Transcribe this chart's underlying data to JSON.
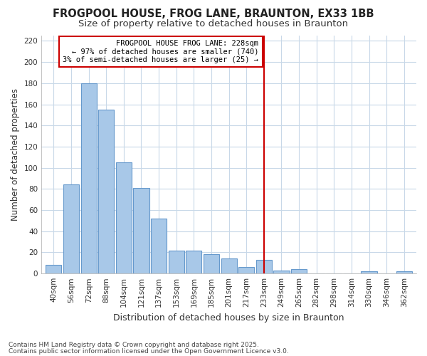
{
  "title": "FROGPOOL HOUSE, FROG LANE, BRAUNTON, EX33 1BB",
  "subtitle": "Size of property relative to detached houses in Braunton",
  "xlabel": "Distribution of detached houses by size in Braunton",
  "ylabel": "Number of detached properties",
  "categories": [
    "40sqm",
    "56sqm",
    "72sqm",
    "88sqm",
    "104sqm",
    "121sqm",
    "137sqm",
    "153sqm",
    "169sqm",
    "185sqm",
    "201sqm",
    "217sqm",
    "233sqm",
    "249sqm",
    "265sqm",
    "282sqm",
    "298sqm",
    "314sqm",
    "330sqm",
    "346sqm",
    "362sqm"
  ],
  "values": [
    8,
    84,
    180,
    155,
    105,
    81,
    52,
    22,
    22,
    18,
    14,
    6,
    13,
    3,
    4,
    0,
    0,
    0,
    2,
    0,
    2
  ],
  "bar_color": "#a8c8e8",
  "bar_edge_color": "#6699cc",
  "reference_line_color": "#cc0000",
  "reference_line_x": 12.0,
  "annotation_box_text": "FROGPOOL HOUSE FROG LANE: 228sqm\n← 97% of detached houses are smaller (740)\n3% of semi-detached houses are larger (25) →",
  "annotation_box_color": "#cc0000",
  "annotation_box_fill": "#ffffff",
  "footnote1": "Contains HM Land Registry data © Crown copyright and database right 2025.",
  "footnote2": "Contains public sector information licensed under the Open Government Licence v3.0.",
  "background_color": "#ffffff",
  "plot_bg_color": "#ffffff",
  "grid_color": "#c8d8e8",
  "ylim": [
    0,
    225
  ],
  "yticks": [
    0,
    20,
    40,
    60,
    80,
    100,
    120,
    140,
    160,
    180,
    200,
    220
  ],
  "title_fontsize": 10.5,
  "subtitle_fontsize": 9.5,
  "xlabel_fontsize": 9,
  "ylabel_fontsize": 8.5,
  "tick_fontsize": 7.5,
  "annotation_fontsize": 7.5,
  "footnote_fontsize": 6.5
}
